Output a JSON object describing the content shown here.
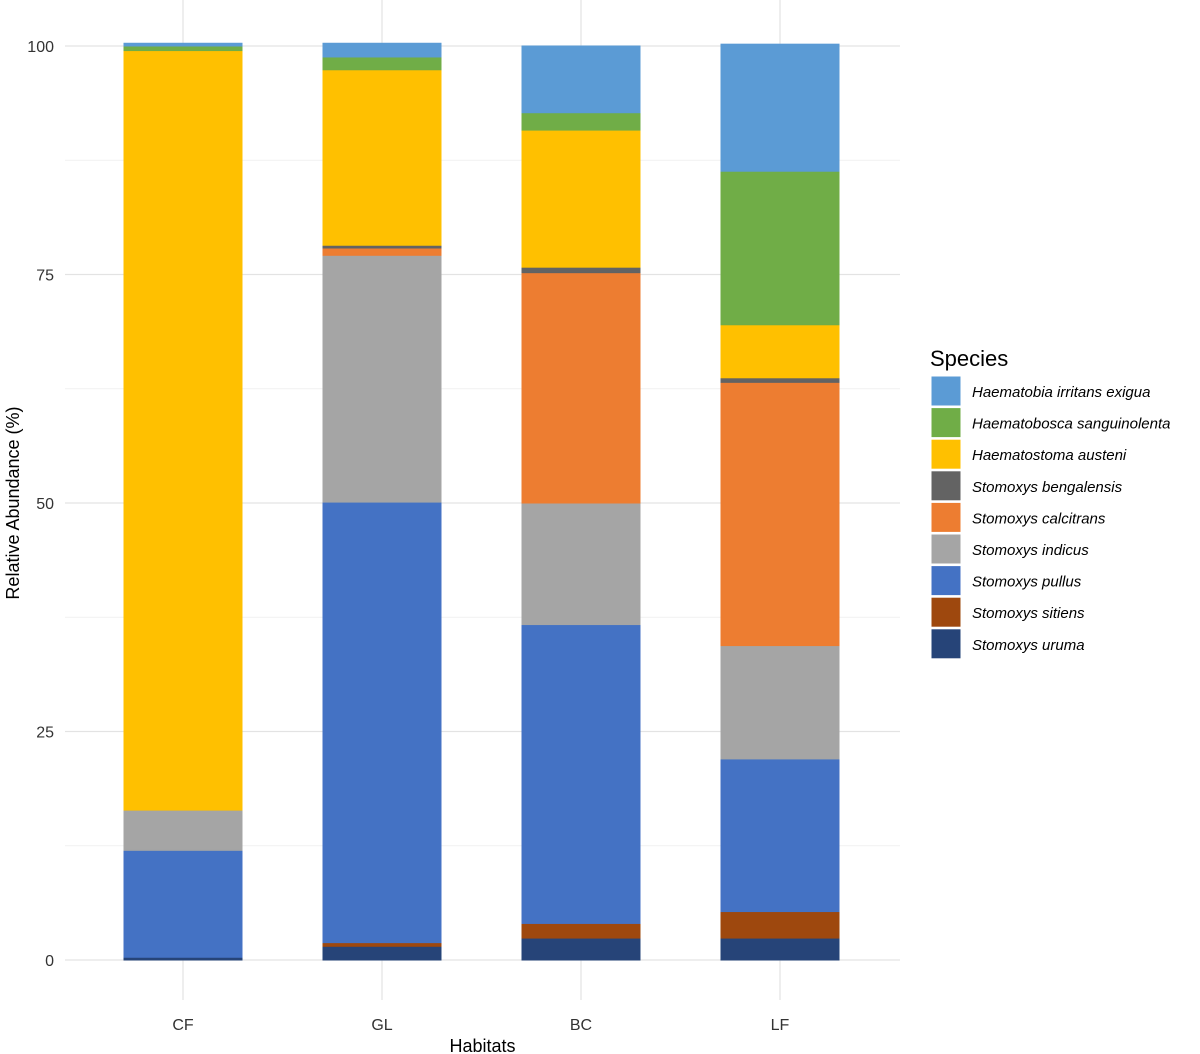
{
  "chart_data": {
    "type": "bar",
    "stacked": true,
    "title": "",
    "xlabel": "Habitats",
    "ylabel": "Relative Abundance (%)",
    "ylim": [
      0,
      100
    ],
    "yticks": [
      0,
      25,
      50,
      75,
      100
    ],
    "grid": true,
    "legend_title": "Species",
    "legend_position": "right",
    "categories": [
      "CF",
      "GL",
      "BC",
      "LF"
    ],
    "series": [
      {
        "name": "Stomoxys uruma",
        "color": "#264478",
        "values": [
          0.3,
          1.5,
          2.4,
          2.4
        ]
      },
      {
        "name": "Stomoxys sitiens",
        "color": "#9E480E",
        "values": [
          0.0,
          0.4,
          1.6,
          2.9
        ]
      },
      {
        "name": "Stomoxys pullus",
        "color": "#4472C4",
        "values": [
          11.7,
          48.2,
          32.7,
          16.7
        ]
      },
      {
        "name": "Stomoxys indicus",
        "color": "#A5A5A5",
        "values": [
          4.4,
          27.0,
          13.3,
          12.4
        ]
      },
      {
        "name": "Stomoxys calcitrans",
        "color": "#ED7D31",
        "values": [
          0.0,
          0.8,
          25.2,
          28.8
        ]
      },
      {
        "name": "Stomoxys bengalensis",
        "color": "#636363",
        "values": [
          0.0,
          0.3,
          0.6,
          0.5
        ]
      },
      {
        "name": "Haematostoma austeni",
        "color": "#FFC000",
        "values": [
          83.1,
          19.2,
          15.0,
          5.8
        ]
      },
      {
        "name": "Haematobosca sanguinolenta",
        "color": "#70AD47",
        "values": [
          0.5,
          1.4,
          1.9,
          16.8
        ]
      },
      {
        "name": "Haematobia irritans exigua",
        "color": "#5B9BD5",
        "values": [
          0.3,
          1.5,
          7.3,
          13.9
        ]
      }
    ]
  }
}
